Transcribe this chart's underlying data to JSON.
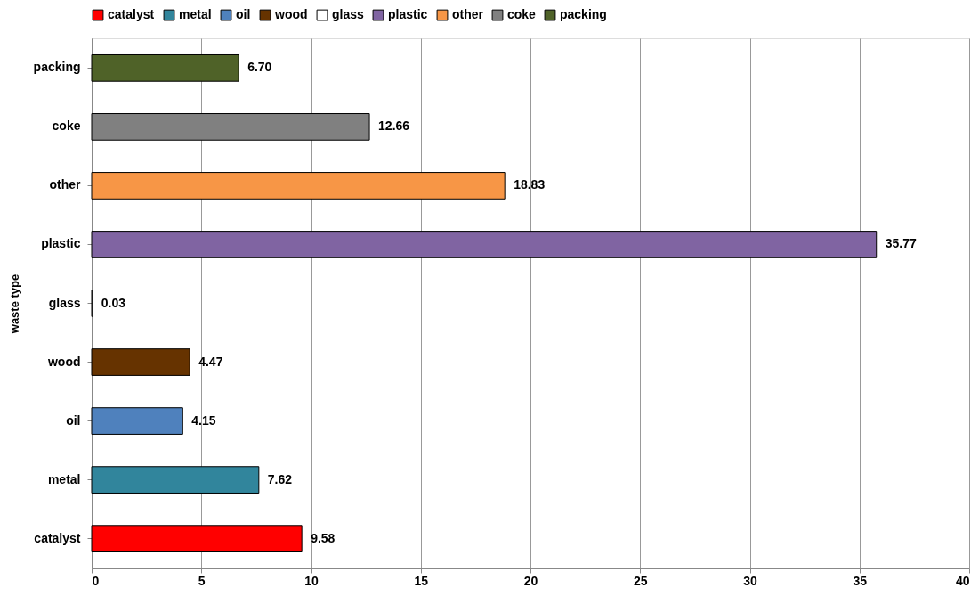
{
  "chart_data": {
    "type": "bar",
    "orientation": "horizontal",
    "stacked": true,
    "ylabel": "waste type",
    "categories": [
      "packing",
      "coke",
      "other",
      "plastic",
      "glass",
      "wood",
      "oil",
      "metal",
      "catalyst"
    ],
    "series": [
      {
        "name": "catalyst",
        "color": "#ff0000",
        "values": [
          null,
          null,
          null,
          null,
          null,
          null,
          null,
          null,
          9.58
        ],
        "value_labels": [
          null,
          null,
          null,
          null,
          null,
          null,
          null,
          null,
          "9.58"
        ]
      },
      {
        "name": "metal",
        "color": "#31859c",
        "values": [
          null,
          null,
          null,
          null,
          null,
          null,
          null,
          7.62,
          null
        ],
        "value_labels": [
          null,
          null,
          null,
          null,
          null,
          null,
          null,
          "7.62",
          null
        ]
      },
      {
        "name": "oil",
        "color": "#4f81bd",
        "values": [
          null,
          null,
          null,
          null,
          null,
          null,
          4.15,
          null,
          null
        ],
        "value_labels": [
          null,
          null,
          null,
          null,
          null,
          null,
          "4.15",
          null,
          null
        ]
      },
      {
        "name": "wood",
        "color": "#663300",
        "values": [
          null,
          null,
          null,
          null,
          null,
          4.47,
          null,
          null,
          null
        ],
        "value_labels": [
          null,
          null,
          null,
          null,
          null,
          "4.47",
          null,
          null,
          null
        ]
      },
      {
        "name": "glass",
        "color": "#ffffff",
        "values": [
          null,
          null,
          null,
          null,
          0.03,
          null,
          null,
          null,
          null
        ],
        "value_labels": [
          null,
          null,
          null,
          null,
          "0.03",
          null,
          null,
          null,
          null
        ]
      },
      {
        "name": "plastic",
        "color": "#8064a2",
        "values": [
          null,
          null,
          null,
          35.77,
          null,
          null,
          null,
          null,
          null
        ],
        "value_labels": [
          null,
          null,
          null,
          "35.77",
          null,
          null,
          null,
          null,
          null
        ]
      },
      {
        "name": "other",
        "color": "#f79646",
        "values": [
          null,
          null,
          18.83,
          null,
          null,
          null,
          null,
          null,
          null
        ],
        "value_labels": [
          null,
          null,
          "18.83",
          null,
          null,
          null,
          null,
          null,
          null
        ]
      },
      {
        "name": "coke",
        "color": "#808080",
        "values": [
          null,
          12.66,
          null,
          null,
          null,
          null,
          null,
          null,
          null
        ],
        "value_labels": [
          null,
          "12.66",
          null,
          null,
          null,
          null,
          null,
          null,
          null
        ]
      },
      {
        "name": "packing",
        "color": "#4f6228",
        "values": [
          6.7,
          null,
          null,
          null,
          null,
          null,
          null,
          null,
          null
        ],
        "value_labels": [
          "6.70",
          null,
          null,
          null,
          null,
          null,
          null,
          null,
          null
        ]
      }
    ],
    "xlim": [
      0,
      40
    ],
    "xticks": [
      0,
      5,
      10,
      15,
      20,
      25,
      30,
      35,
      40
    ],
    "grid": "x",
    "legend": "top"
  }
}
